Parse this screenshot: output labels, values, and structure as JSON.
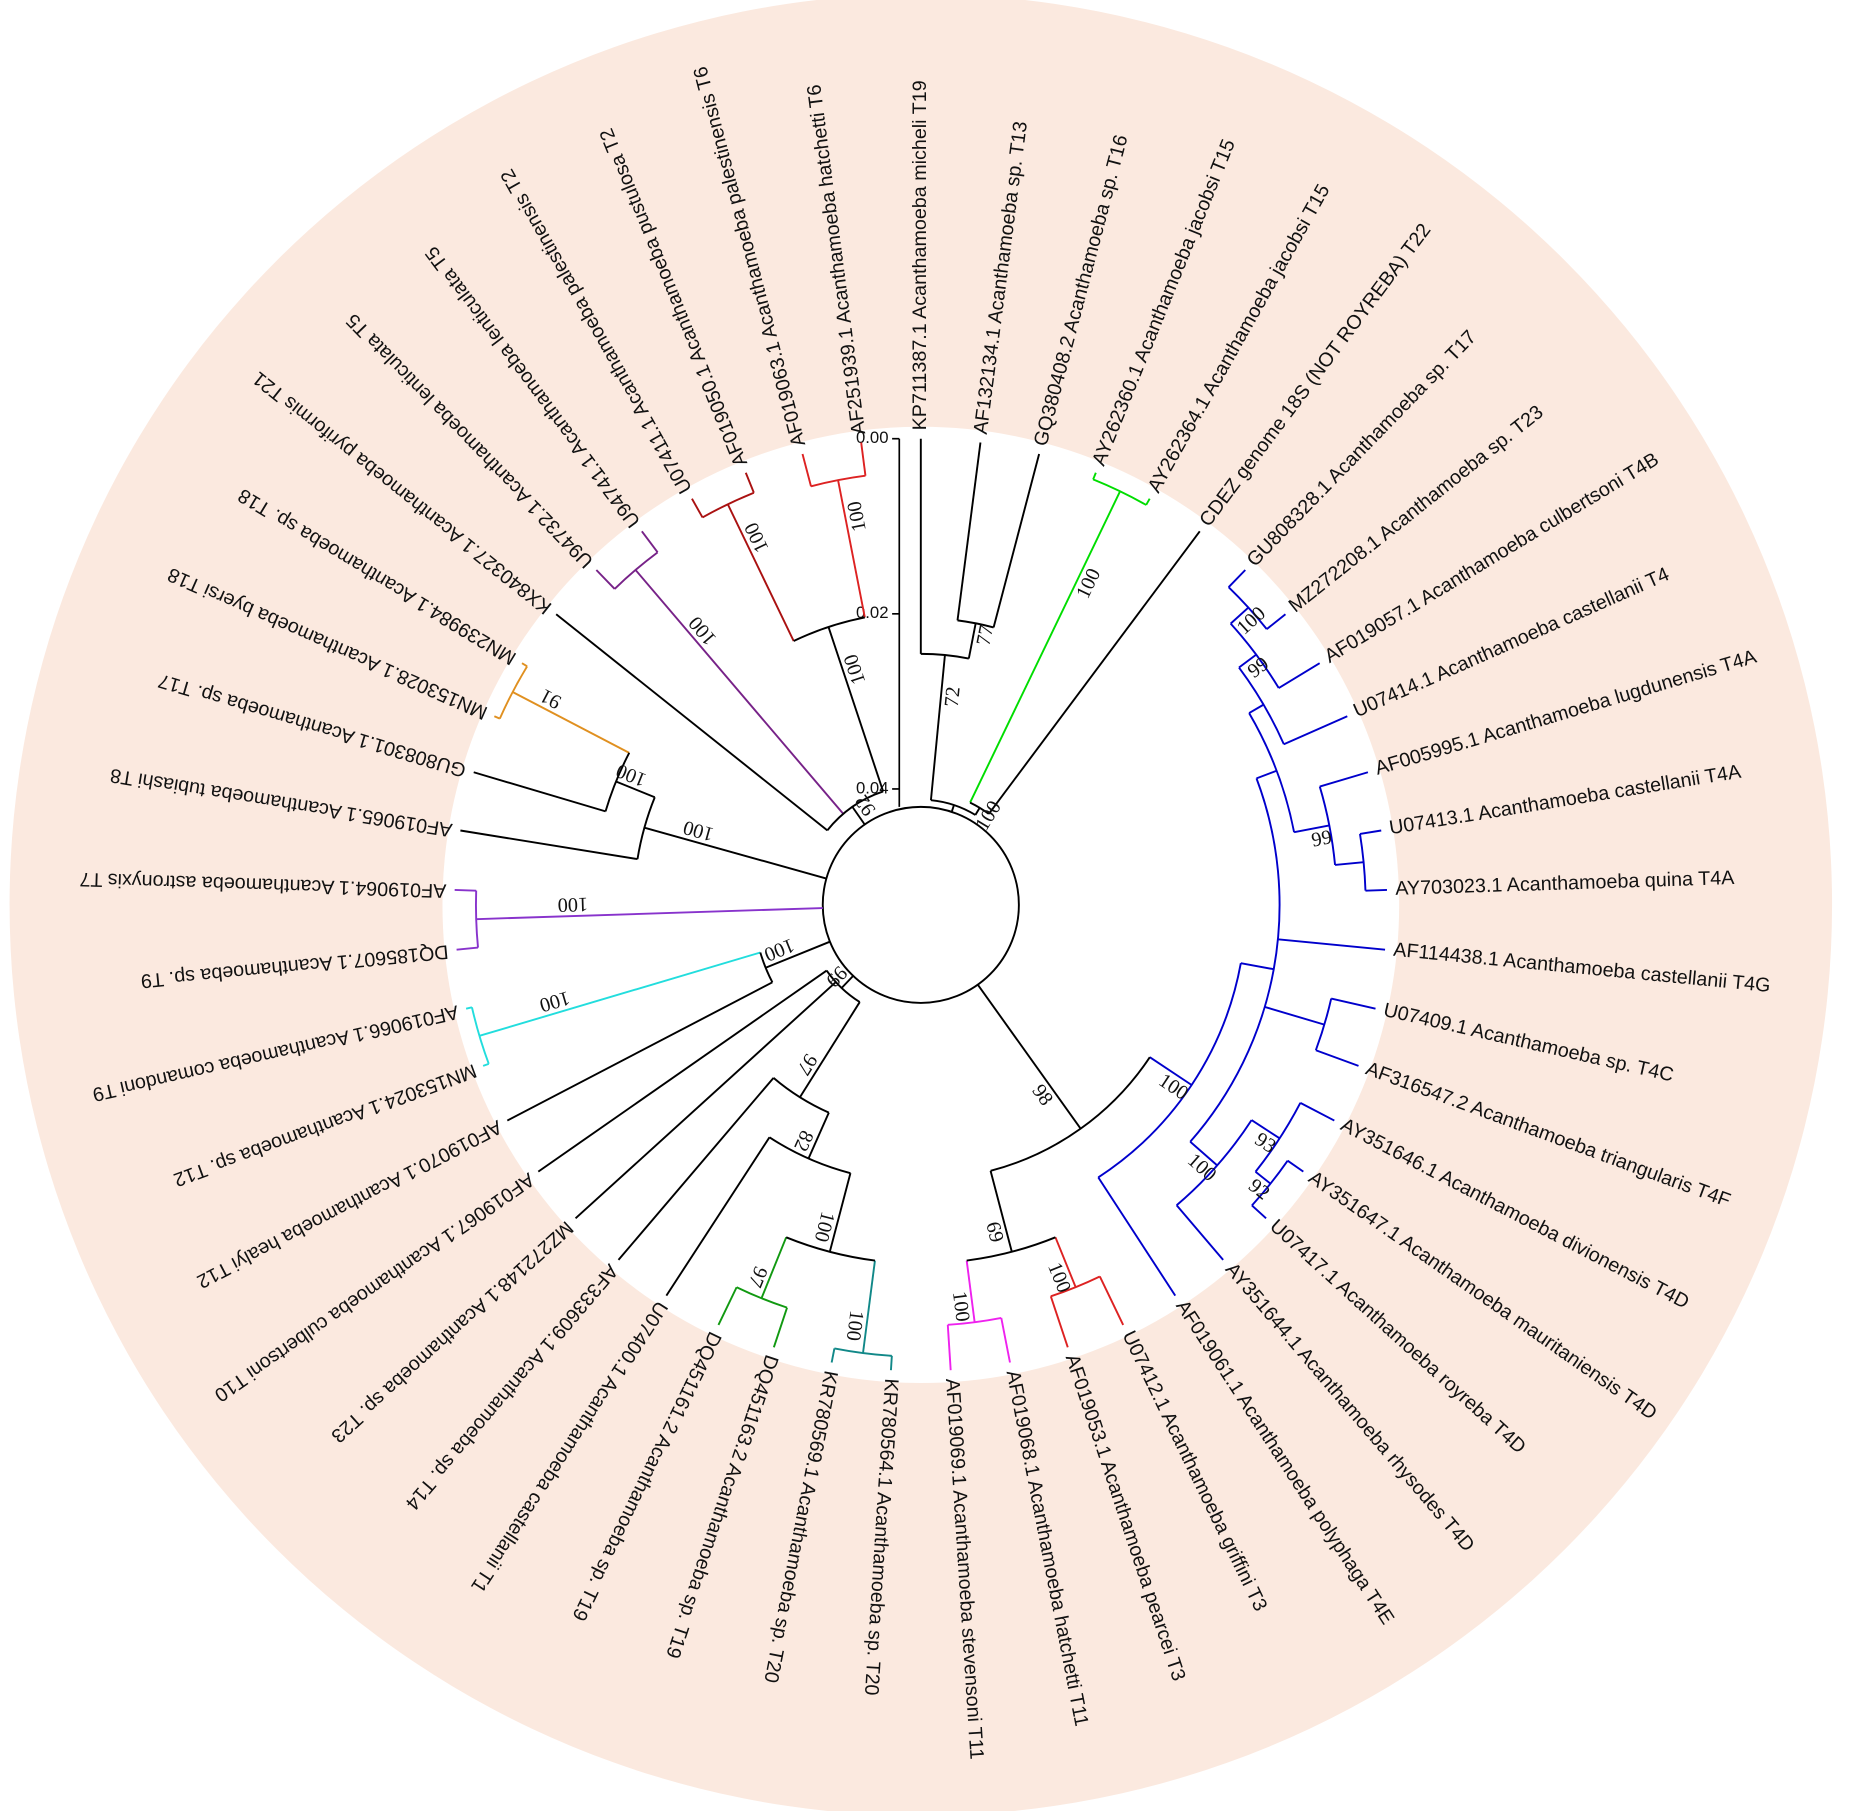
{
  "tree": {
    "scale_ticks": [
      {
        "value": 0,
        "label": "0.00"
      },
      {
        "value": 0.02,
        "label": "0.02"
      },
      {
        "value": 0.04,
        "label": "0.04"
      }
    ],
    "leaves": [
      "KP711387.1 Acanthamoeba micheli T19",
      "AF132134.1 Acanthamoeba sp. T13",
      "GQ380408.2 Acanthamoeba sp. T16",
      "AY262360.1 Acanthamoeba jacobsi T15",
      "AY262364.1 Acanthamoeba jacobsi T15",
      "CDEZ genome 18S (NOT ROYREBA) T22",
      "GU808328.1 Acanthamoeba sp. T17",
      "MZ272208.1 Acanthamoeba sp. T23",
      "AF019057.1 Acanthamoeba culbertsoni T4B",
      "U07414.1 Acanthamoeba castellanii T4",
      "AF005995.1 Acanthamoeba lugdunensis T4A",
      "U07413.1 Acanthamoeba castellanii T4A",
      "AY703023.1 Acanthamoeba quina T4A",
      "AF114438.1 Acanthamoeba castellanii T4G",
      "U07409.1 Acanthamoeba sp. T4C",
      "AF316547.2 Acanthamoeba triangularis T4F",
      "AY351646.1 Acanthamoeba divionensis T4D",
      "AY351647.1 Acanthamoeba mauritaniensis T4D",
      "U07417.1 Acanthamoeba royreba T4D",
      "AY351644.1 Acanthamoeba rhysodes T4D",
      "AF019061.1 Acanthamoeba polyphaga T4E",
      "U07412.1 Acanthamoeba griffini T3",
      "AF019053.1 Acanthamoeba pearcei T3",
      "AF019068.1 Acanthamoeba hatchetti T11",
      "AF019069.1 Acanthamoeba stevensoni T11",
      "KR780564.1 Acanthamoeba sp. T20",
      "KR780569.1 Acanthamoeba sp. T20",
      "DQ451163.2 Acanthamoeba sp. T19",
      "DQ451161.2 Acanthamoeba sp. T19",
      "U07400.1 Acanthamoeba castellanii T1",
      "AF333609.1 Acanthamoeba sp. T14",
      "MZ272148.1 Acanthamoeba sp. T23",
      "AF019067.1 Acanthamoeba culbertsoni T10",
      "AF019070.1 Acanthamoeba healyi T12",
      "MN153024.1 Acanthamoeba sp. T12",
      "AF019066.1 Acanthamoeba comandoni T9",
      "DQ185607.1 Acanthamoeba sp. T9",
      "AF019064.1 Acanthamoeba astronyxis T7",
      "AF019065.1 Acanthamoeba tubiashi T8",
      "GU808301.1 Acanthamoeba sp. T17",
      "MN153028.1 Acanthamoeba byersi T18",
      "MN239984.1 Acanthamoeba sp. T18",
      "KX840327.1 Acanthamoeba pyriformis T21",
      "U94732.1 Acanthamoeba lenticulata T5",
      "U94741.1 Acanthamoeba lenticulata T5",
      "U07411.1 Acanthamoeba palestinensis T2",
      "AF019050.1 Acanthamoeba pustulosa T2",
      "AF019063.1 Acanthamoeba palestinensis T6",
      "AF251939.1 Acanthamoeba hatchetti T6"
    ],
    "bootstrap_values": [
      72,
      77,
      100,
      100,
      98,
      100,
      99,
      100,
      99,
      100,
      93,
      92,
      69,
      100,
      100,
      99,
      97,
      82,
      100,
      100,
      97,
      100,
      100,
      100,
      100,
      100,
      91,
      92,
      100,
      100,
      100,
      100
    ]
  }
}
